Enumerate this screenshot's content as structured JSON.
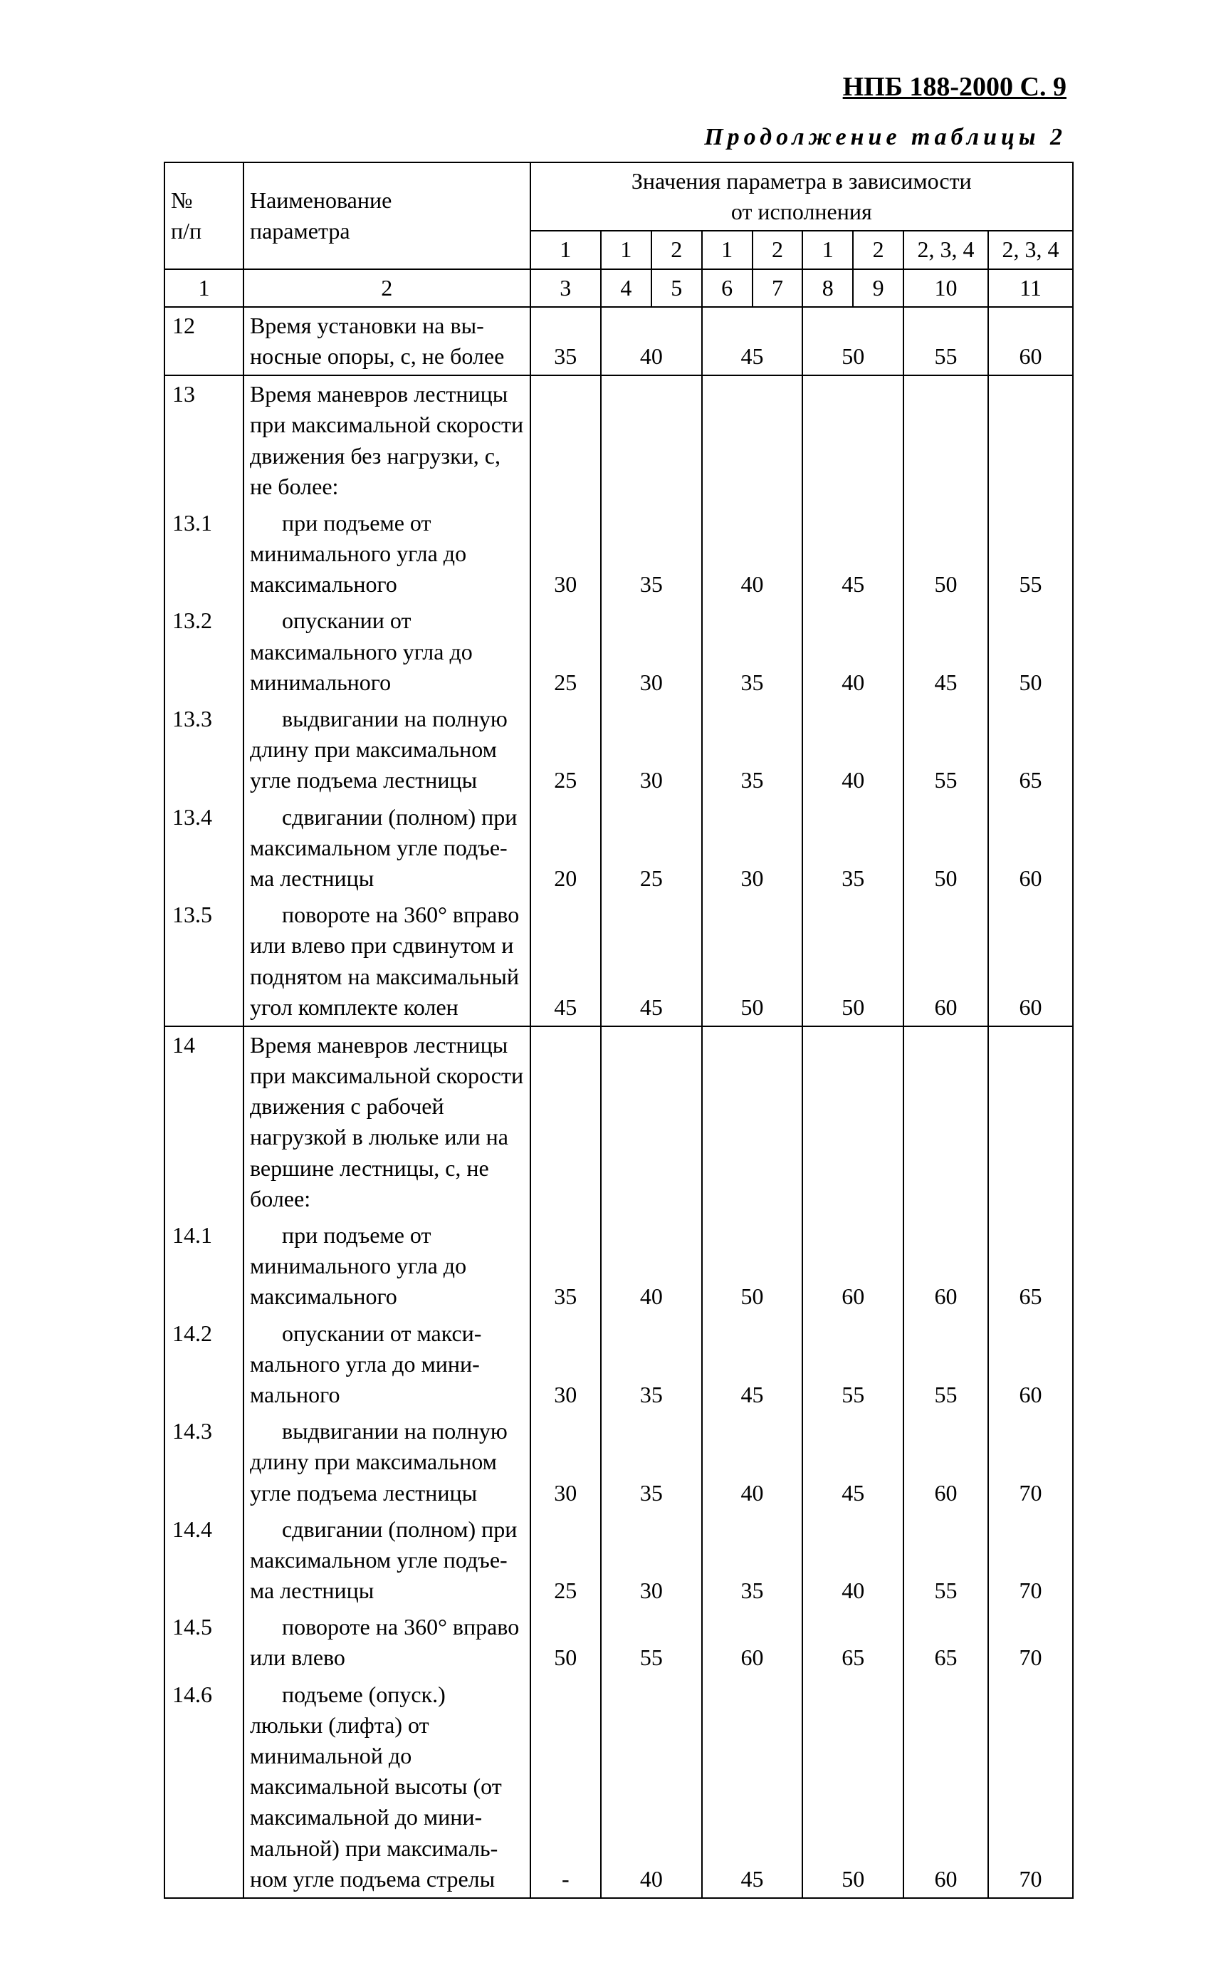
{
  "doc_header": "НПБ 188-2000   С. 9",
  "continuation_label": "Продолжение  таблицы  2",
  "header": {
    "num": "№\nп/п",
    "name": "Наименование\nпараметра",
    "values_title": "Значения параметра в зависимости\nот исполнения",
    "groups": [
      "1",
      "1",
      "2",
      "1",
      "2",
      "1",
      "2",
      "2, 3, 4",
      "2, 3, 4"
    ],
    "colnums": [
      "1",
      "2",
      "3",
      "4",
      "5",
      "6",
      "7",
      "8",
      "9",
      "10",
      "11"
    ]
  },
  "rows": [
    {
      "num": "12",
      "name": "Время установки на вы­носные опоры, с, не более",
      "vals": [
        "35",
        "40",
        "45",
        "50",
        "55",
        "60"
      ],
      "section": true,
      "last": true
    },
    {
      "num": "13",
      "name": "Время маневров лестницы при максимальной скоро­сти движения без нагрузки, с, не более:",
      "vals": [
        "",
        "",
        "",
        "",
        "",
        ""
      ],
      "section": true
    },
    {
      "num": "13.1",
      "name": "при подъеме от минималь­ного угла до максимального",
      "vals": [
        "30",
        "35",
        "40",
        "45",
        "50",
        "55"
      ],
      "sub": true
    },
    {
      "num": "13.2",
      "name": "опускании от максималь­ного угла до минимального",
      "vals": [
        "25",
        "30",
        "35",
        "40",
        "45",
        "50"
      ],
      "sub": true
    },
    {
      "num": "13.3",
      "name": "выдвигании на полную длину при максимальном угле подъема лестницы",
      "vals": [
        "25",
        "30",
        "35",
        "40",
        "55",
        "65"
      ],
      "sub": true
    },
    {
      "num": "13.4",
      "name": "сдвигании (полном) при максимальном угле подъе­ма лестницы",
      "vals": [
        "20",
        "25",
        "30",
        "35",
        "50",
        "60"
      ],
      "sub": true
    },
    {
      "num": "13.5",
      "name": "повороте на 360° вправо или влево при сдвинутом и поднятом на максимальный угол комплекте колен",
      "vals": [
        "45",
        "45",
        "50",
        "50",
        "60",
        "60"
      ],
      "sub": true,
      "last": true
    },
    {
      "num": "14",
      "name": "Время маневров лестницы при максимальной скоро­сти движения с рабочей нагрузкой в люльке или на вершине лестницы, с, не более:",
      "vals": [
        "",
        "",
        "",
        "",
        "",
        ""
      ],
      "section": true
    },
    {
      "num": "14.1",
      "name": "при подъеме от минималь­ного угла до максимального",
      "vals": [
        "35",
        "40",
        "50",
        "60",
        "60",
        "65"
      ],
      "sub": true
    },
    {
      "num": "14.2",
      "name": "опускании от макси­мального угла  до мини­мального",
      "vals": [
        "30",
        "35",
        "45",
        "55",
        "55",
        "60"
      ],
      "sub": true
    },
    {
      "num": "14.3",
      "name": "выдвигании на полную длину при максимальном угле подъема лестницы",
      "vals": [
        "30",
        "35",
        "40",
        "45",
        "60",
        "70"
      ],
      "sub": true
    },
    {
      "num": "14.4",
      "name": "сдвигании (полном) при максимальном угле подъе­ма лестницы",
      "vals": [
        "25",
        "30",
        "35",
        "40",
        "55",
        "70"
      ],
      "sub": true
    },
    {
      "num": "14.5",
      "name": "повороте на 360° вправо или влево",
      "vals": [
        "50",
        "55",
        "60",
        "65",
        "65",
        "70"
      ],
      "sub": true
    },
    {
      "num": "14.6",
      "name": "подъеме (опуск.) люльки (лифта) от минимальной до максимальной высоты (от максимальной до мини­мальной) при максималь­ном угле подъема стрелы",
      "vals": [
        "-",
        "40",
        "45",
        "50",
        "60",
        "70"
      ],
      "sub": true,
      "last": true
    }
  ]
}
